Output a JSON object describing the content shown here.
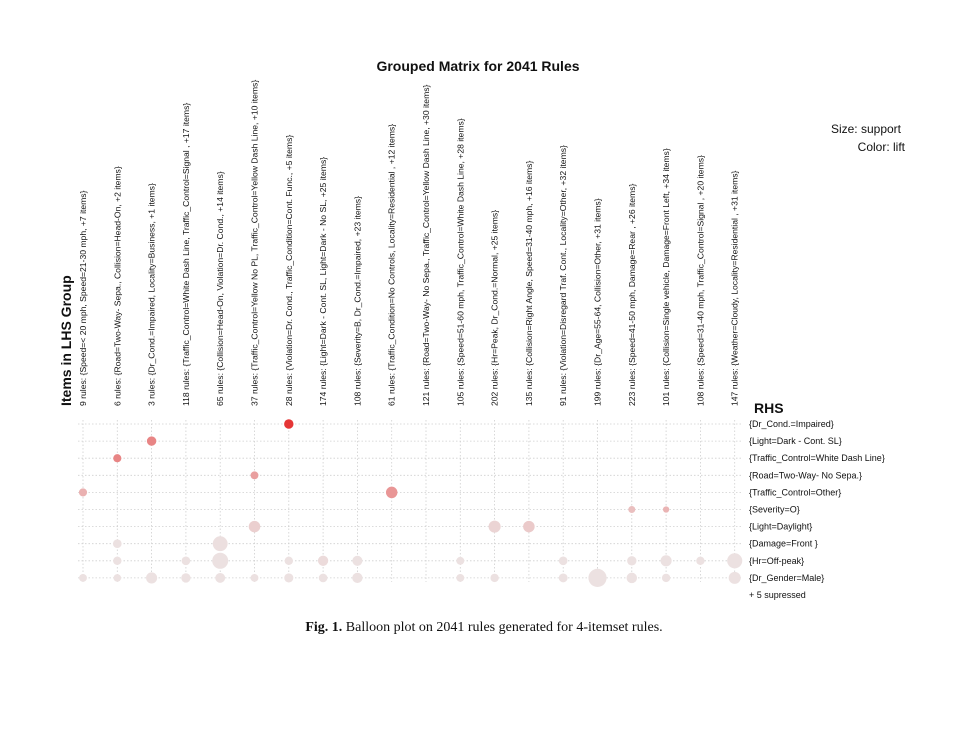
{
  "chart_data": {
    "type": "scatter",
    "title": "Grouped Matrix for 2041 Rules",
    "size_legend": "Size: support",
    "color_legend": "Color: lift",
    "x_axis_title": "Items in LHS Group",
    "y_axis_title": "RHS",
    "lhs_groups": [
      "9 rules: {Speed=< 20 mph, Speed=21-30 mph, +7 items}",
      "6 rules: {Road=Two-Way- Sepa., Collision=Head-On, +2 items}",
      "3 rules: {Dr_Cond.=Impaired, Locality=Business, +1 items}",
      "118 rules: {Traffic_Control=White Dash Line, Traffic_Control=Signal , +17 items}",
      "65 rules: {Collision=Head-On, Violation=Dr. Cond., +14 items}",
      "37 rules: {Traffic_Control=Yellow No PL, Traffic_Control=Yellow Dash Line, +10 items}",
      "28 rules: {Violation=Dr. Cond., Traffic_Condition=Cont. Func., +5 items}",
      "174 rules: {Light=Dark - Cont. SL, Light=Dark - No SL, +25 items}",
      "108 rules: {Severity=B, Dr_Cond.=Impaired, +23 items}",
      "61 rules: {Traffic_Condition=No Controls, Locality=Residential , +12 items}",
      "121 rules: {Road=Two-Way- No Sepa., Traffic_Control=Yellow Dash Line, +30 items}",
      "105 rules: {Speed=51-60 mph, Traffic_Control=White Dash Line, +28 items}",
      "202 rules: {Hr=Peak, Dr_Cond.=Normal, +25 items}",
      "135 rules: {Collision=Right Angle, Speed=31-40 mph, +16 items}",
      "91 rules: {Violation=Disregard Traf. Cont., Locality=Other, +32 items}",
      "199 rules: {Dr_Age=55-64, Collision=Other, +31 items}",
      "223 rules: {Speed=41-50 mph, Damage=Rear , +26 items}",
      "101 rules: {Collision=Single vehicle, Damage=Front Left, +34 items}",
      "108 rules: {Speed=31-40 mph, Traffic_Control=Signal , +20 items}",
      "147 rules: {Weather=Cloudy, Locality=Residential , +31 items}"
    ],
    "rhs_items": [
      "{Dr_Cond.=Impaired}",
      "{Light=Dark - Cont. SL}",
      "{Traffic_Control=White Dash Line}",
      "{Road=Two-Way- No Sepa.}",
      "{Traffic_Control=Other}",
      "{Severity=O}",
      "{Light=Daylight}",
      "{Damage=Front }",
      "{Hr=Off-peak}",
      "{Dr_Gender=Male}",
      "+ 5 supressed"
    ],
    "support_range": [
      0,
      1
    ],
    "lift_range": [
      0,
      1
    ],
    "color_low": "#ece6e6",
    "color_high": "#e53535",
    "grid": true,
    "points": [
      {
        "x": 6,
        "y": 0,
        "support": 0.2,
        "lift": 1.0
      },
      {
        "x": 2,
        "y": 1,
        "support": 0.2,
        "lift": 0.55
      },
      {
        "x": 1,
        "y": 2,
        "support": 0.15,
        "lift": 0.55
      },
      {
        "x": 5,
        "y": 3,
        "support": 0.14,
        "lift": 0.4
      },
      {
        "x": 0,
        "y": 4,
        "support": 0.15,
        "lift": 0.3
      },
      {
        "x": 9,
        "y": 4,
        "support": 0.3,
        "lift": 0.45
      },
      {
        "x": 16,
        "y": 5,
        "support": 0.11,
        "lift": 0.22
      },
      {
        "x": 17,
        "y": 5,
        "support": 0.09,
        "lift": 0.28
      },
      {
        "x": 5,
        "y": 6,
        "support": 0.3,
        "lift": 0.13
      },
      {
        "x": 12,
        "y": 6,
        "support": 0.33,
        "lift": 0.1
      },
      {
        "x": 13,
        "y": 6,
        "support": 0.3,
        "lift": 0.16
      },
      {
        "x": 1,
        "y": 7,
        "support": 0.17,
        "lift": 0.03
      },
      {
        "x": 4,
        "y": 7,
        "support": 0.5,
        "lift": 0.04
      },
      {
        "x": 1,
        "y": 8,
        "support": 0.16,
        "lift": 0.03
      },
      {
        "x": 3,
        "y": 8,
        "support": 0.17,
        "lift": 0.03
      },
      {
        "x": 4,
        "y": 8,
        "support": 0.58,
        "lift": 0.03
      },
      {
        "x": 6,
        "y": 8,
        "support": 0.16,
        "lift": 0.03
      },
      {
        "x": 7,
        "y": 8,
        "support": 0.24,
        "lift": 0.06
      },
      {
        "x": 8,
        "y": 8,
        "support": 0.23,
        "lift": 0.03
      },
      {
        "x": 11,
        "y": 8,
        "support": 0.14,
        "lift": 0.03
      },
      {
        "x": 14,
        "y": 8,
        "support": 0.17,
        "lift": 0.03
      },
      {
        "x": 16,
        "y": 8,
        "support": 0.2,
        "lift": 0.03
      },
      {
        "x": 17,
        "y": 8,
        "support": 0.28,
        "lift": 0.03
      },
      {
        "x": 18,
        "y": 8,
        "support": 0.16,
        "lift": 0.03
      },
      {
        "x": 19,
        "y": 8,
        "support": 0.52,
        "lift": 0.03
      },
      {
        "x": 0,
        "y": 9,
        "support": 0.14,
        "lift": 0.03
      },
      {
        "x": 1,
        "y": 9,
        "support": 0.13,
        "lift": 0.03
      },
      {
        "x": 2,
        "y": 9,
        "support": 0.28,
        "lift": 0.03
      },
      {
        "x": 3,
        "y": 9,
        "support": 0.2,
        "lift": 0.03
      },
      {
        "x": 4,
        "y": 9,
        "support": 0.22,
        "lift": 0.03
      },
      {
        "x": 5,
        "y": 9,
        "support": 0.14,
        "lift": 0.03
      },
      {
        "x": 6,
        "y": 9,
        "support": 0.19,
        "lift": 0.03
      },
      {
        "x": 7,
        "y": 9,
        "support": 0.17,
        "lift": 0.03
      },
      {
        "x": 8,
        "y": 9,
        "support": 0.24,
        "lift": 0.03
      },
      {
        "x": 11,
        "y": 9,
        "support": 0.14,
        "lift": 0.03
      },
      {
        "x": 12,
        "y": 9,
        "support": 0.16,
        "lift": 0.03
      },
      {
        "x": 14,
        "y": 9,
        "support": 0.18,
        "lift": 0.03
      },
      {
        "x": 15,
        "y": 9,
        "support": 0.75,
        "lift": 0.03
      },
      {
        "x": 16,
        "y": 9,
        "support": 0.25,
        "lift": 0.03
      },
      {
        "x": 17,
        "y": 9,
        "support": 0.16,
        "lift": 0.03
      },
      {
        "x": 19,
        "y": 9,
        "support": 0.33,
        "lift": 0.03
      }
    ]
  },
  "caption": {
    "label": "Fig. 1.",
    "text": "Balloon plot on 2041 rules generated for 4-itemset rules."
  }
}
